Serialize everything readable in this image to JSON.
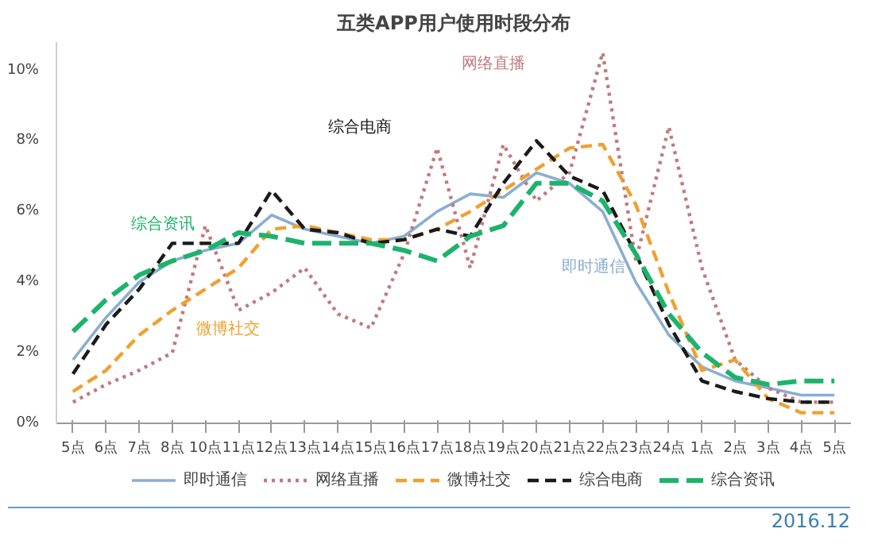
{
  "chart_data": {
    "type": "line",
    "title": "五类APP用户使用时段分布",
    "categories": [
      "5点",
      "6点",
      "7点",
      "8点",
      "10点",
      "11点",
      "12点",
      "13点",
      "14点",
      "15点",
      "16点",
      "17点",
      "18点",
      "19点",
      "20点",
      "21点",
      "22点",
      "23点",
      "24点",
      "1点",
      "2点",
      "3点",
      "4点",
      "5点"
    ],
    "series": [
      {
        "name": "即时通信",
        "color": "#8aaed2",
        "line_style": "solid",
        "values": [
          1.8,
          3.0,
          4.0,
          4.6,
          4.9,
          5.1,
          5.9,
          5.5,
          5.3,
          5.1,
          5.3,
          6.0,
          6.5,
          6.4,
          7.1,
          6.8,
          6.0,
          4.0,
          2.5,
          1.6,
          1.2,
          1.0,
          0.8,
          0.8
        ]
      },
      {
        "name": "网络直播",
        "color": "#c07a80",
        "line_style": "dotted",
        "values": [
          0.6,
          1.1,
          1.5,
          2.0,
          5.6,
          3.2,
          3.7,
          4.4,
          3.1,
          2.7,
          4.8,
          7.8,
          4.4,
          7.9,
          6.3,
          7.1,
          10.5,
          4.6,
          8.4,
          4.4,
          1.8,
          1.0,
          0.6,
          0.6
        ]
      },
      {
        "name": "微博社交",
        "color": "#f0a030",
        "line_style": "dashed",
        "values": [
          0.9,
          1.5,
          2.5,
          3.2,
          3.8,
          4.4,
          5.5,
          5.6,
          5.4,
          5.2,
          5.2,
          5.5,
          6.0,
          6.6,
          7.2,
          7.8,
          7.9,
          6.2,
          3.7,
          1.5,
          1.8,
          0.7,
          0.3,
          0.3
        ]
      },
      {
        "name": "综合电商",
        "color": "#1a1a1a",
        "line_style": "dashed",
        "values": [
          1.4,
          2.8,
          3.8,
          5.1,
          5.1,
          5.1,
          6.6,
          5.5,
          5.4,
          5.1,
          5.2,
          5.5,
          5.3,
          6.8,
          8.0,
          7.0,
          6.6,
          4.8,
          2.8,
          1.2,
          0.9,
          0.7,
          0.6,
          0.6
        ]
      },
      {
        "name": "综合资讯",
        "color": "#1db36b",
        "line_style": "dashed",
        "values": [
          2.6,
          3.5,
          4.2,
          4.6,
          4.9,
          5.4,
          5.3,
          5.1,
          5.1,
          5.1,
          4.9,
          4.6,
          5.3,
          5.6,
          6.8,
          6.8,
          6.3,
          4.8,
          3.1,
          2.0,
          1.3,
          1.1,
          1.2,
          1.2
        ]
      }
    ],
    "annotations": [
      "即时通信",
      "网络直播",
      "微博社交",
      "综合电商",
      "综合资讯",
      "2016.12"
    ],
    "ylim": [
      0,
      10.8
    ],
    "yticks": [
      {
        "value": 0,
        "label": "0%"
      },
      {
        "value": 2,
        "label": "2%"
      },
      {
        "value": 4,
        "label": "4%"
      },
      {
        "value": 6,
        "label": "6%"
      },
      {
        "value": 8,
        "label": "8%"
      },
      {
        "value": 10,
        "label": "10%"
      }
    ],
    "legend": "bottom",
    "grid": false
  }
}
